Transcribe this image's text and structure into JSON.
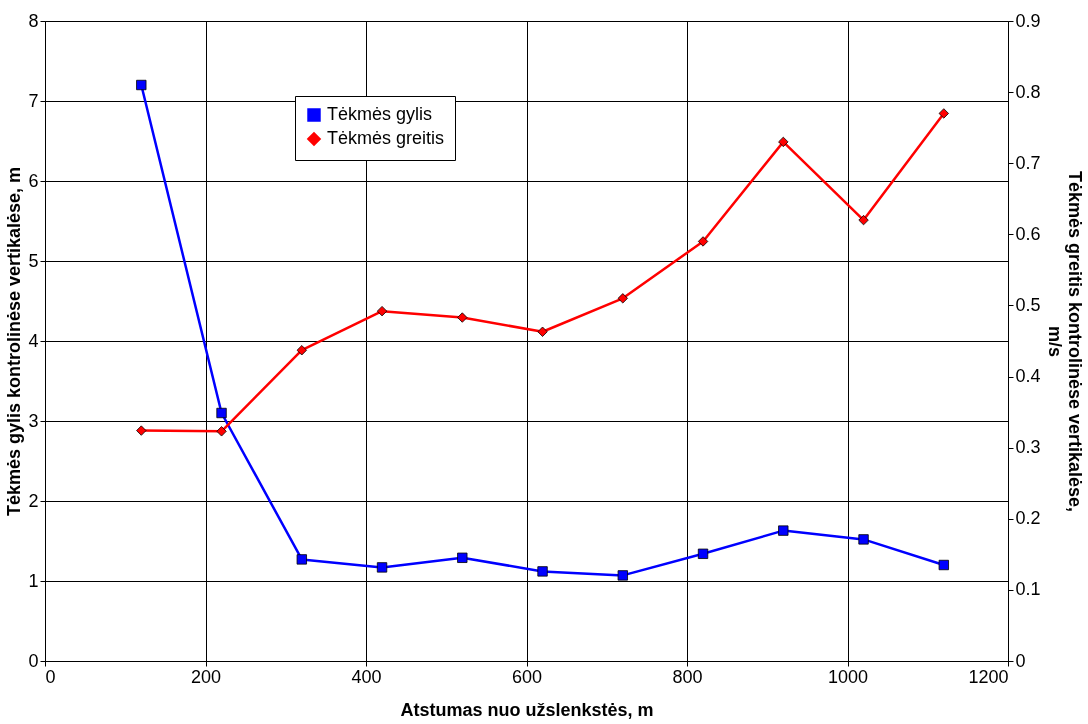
{
  "chart_data": {
    "type": "line",
    "xlabel": "Atstumas nuo užslenkstės, m",
    "ylabel": "Tėkmės gylis kontrolinėse vertikalėse, m",
    "y2label": "Tėkmės greitis kontrolinėse vertikalėse, m/s",
    "x": [
      120,
      220,
      320,
      420,
      520,
      620,
      720,
      820,
      920,
      1020,
      1120
    ],
    "series": [
      {
        "name": "Tėkmės gylis",
        "color": "#0000ff",
        "marker": "square",
        "values": [
          7.2,
          3.1,
          1.27,
          1.17,
          1.29,
          1.12,
          1.07,
          1.34,
          1.63,
          1.52,
          1.2
        ]
      },
      {
        "name": "Tėkmės greitis",
        "color": "#ff0000",
        "marker": "diamond",
        "axis": "y2",
        "values": [
          0.324,
          0.323,
          0.437,
          0.492,
          0.483,
          0.463,
          0.51,
          0.59,
          0.73,
          0.62,
          0.77
        ]
      }
    ],
    "xlim": [
      0,
      1200
    ],
    "xticks": [
      0,
      200,
      400,
      600,
      800,
      1000,
      1200
    ],
    "ylim": [
      0,
      8
    ],
    "yticks": [
      0,
      1,
      2,
      3,
      4,
      5,
      6,
      7,
      8
    ],
    "y2lim": [
      0,
      0.9
    ],
    "y2ticks": [
      0,
      0.1,
      0.2,
      0.3,
      0.4,
      0.5,
      0.6,
      0.7,
      0.8,
      0.9
    ],
    "grid": true,
    "legend": "top"
  }
}
